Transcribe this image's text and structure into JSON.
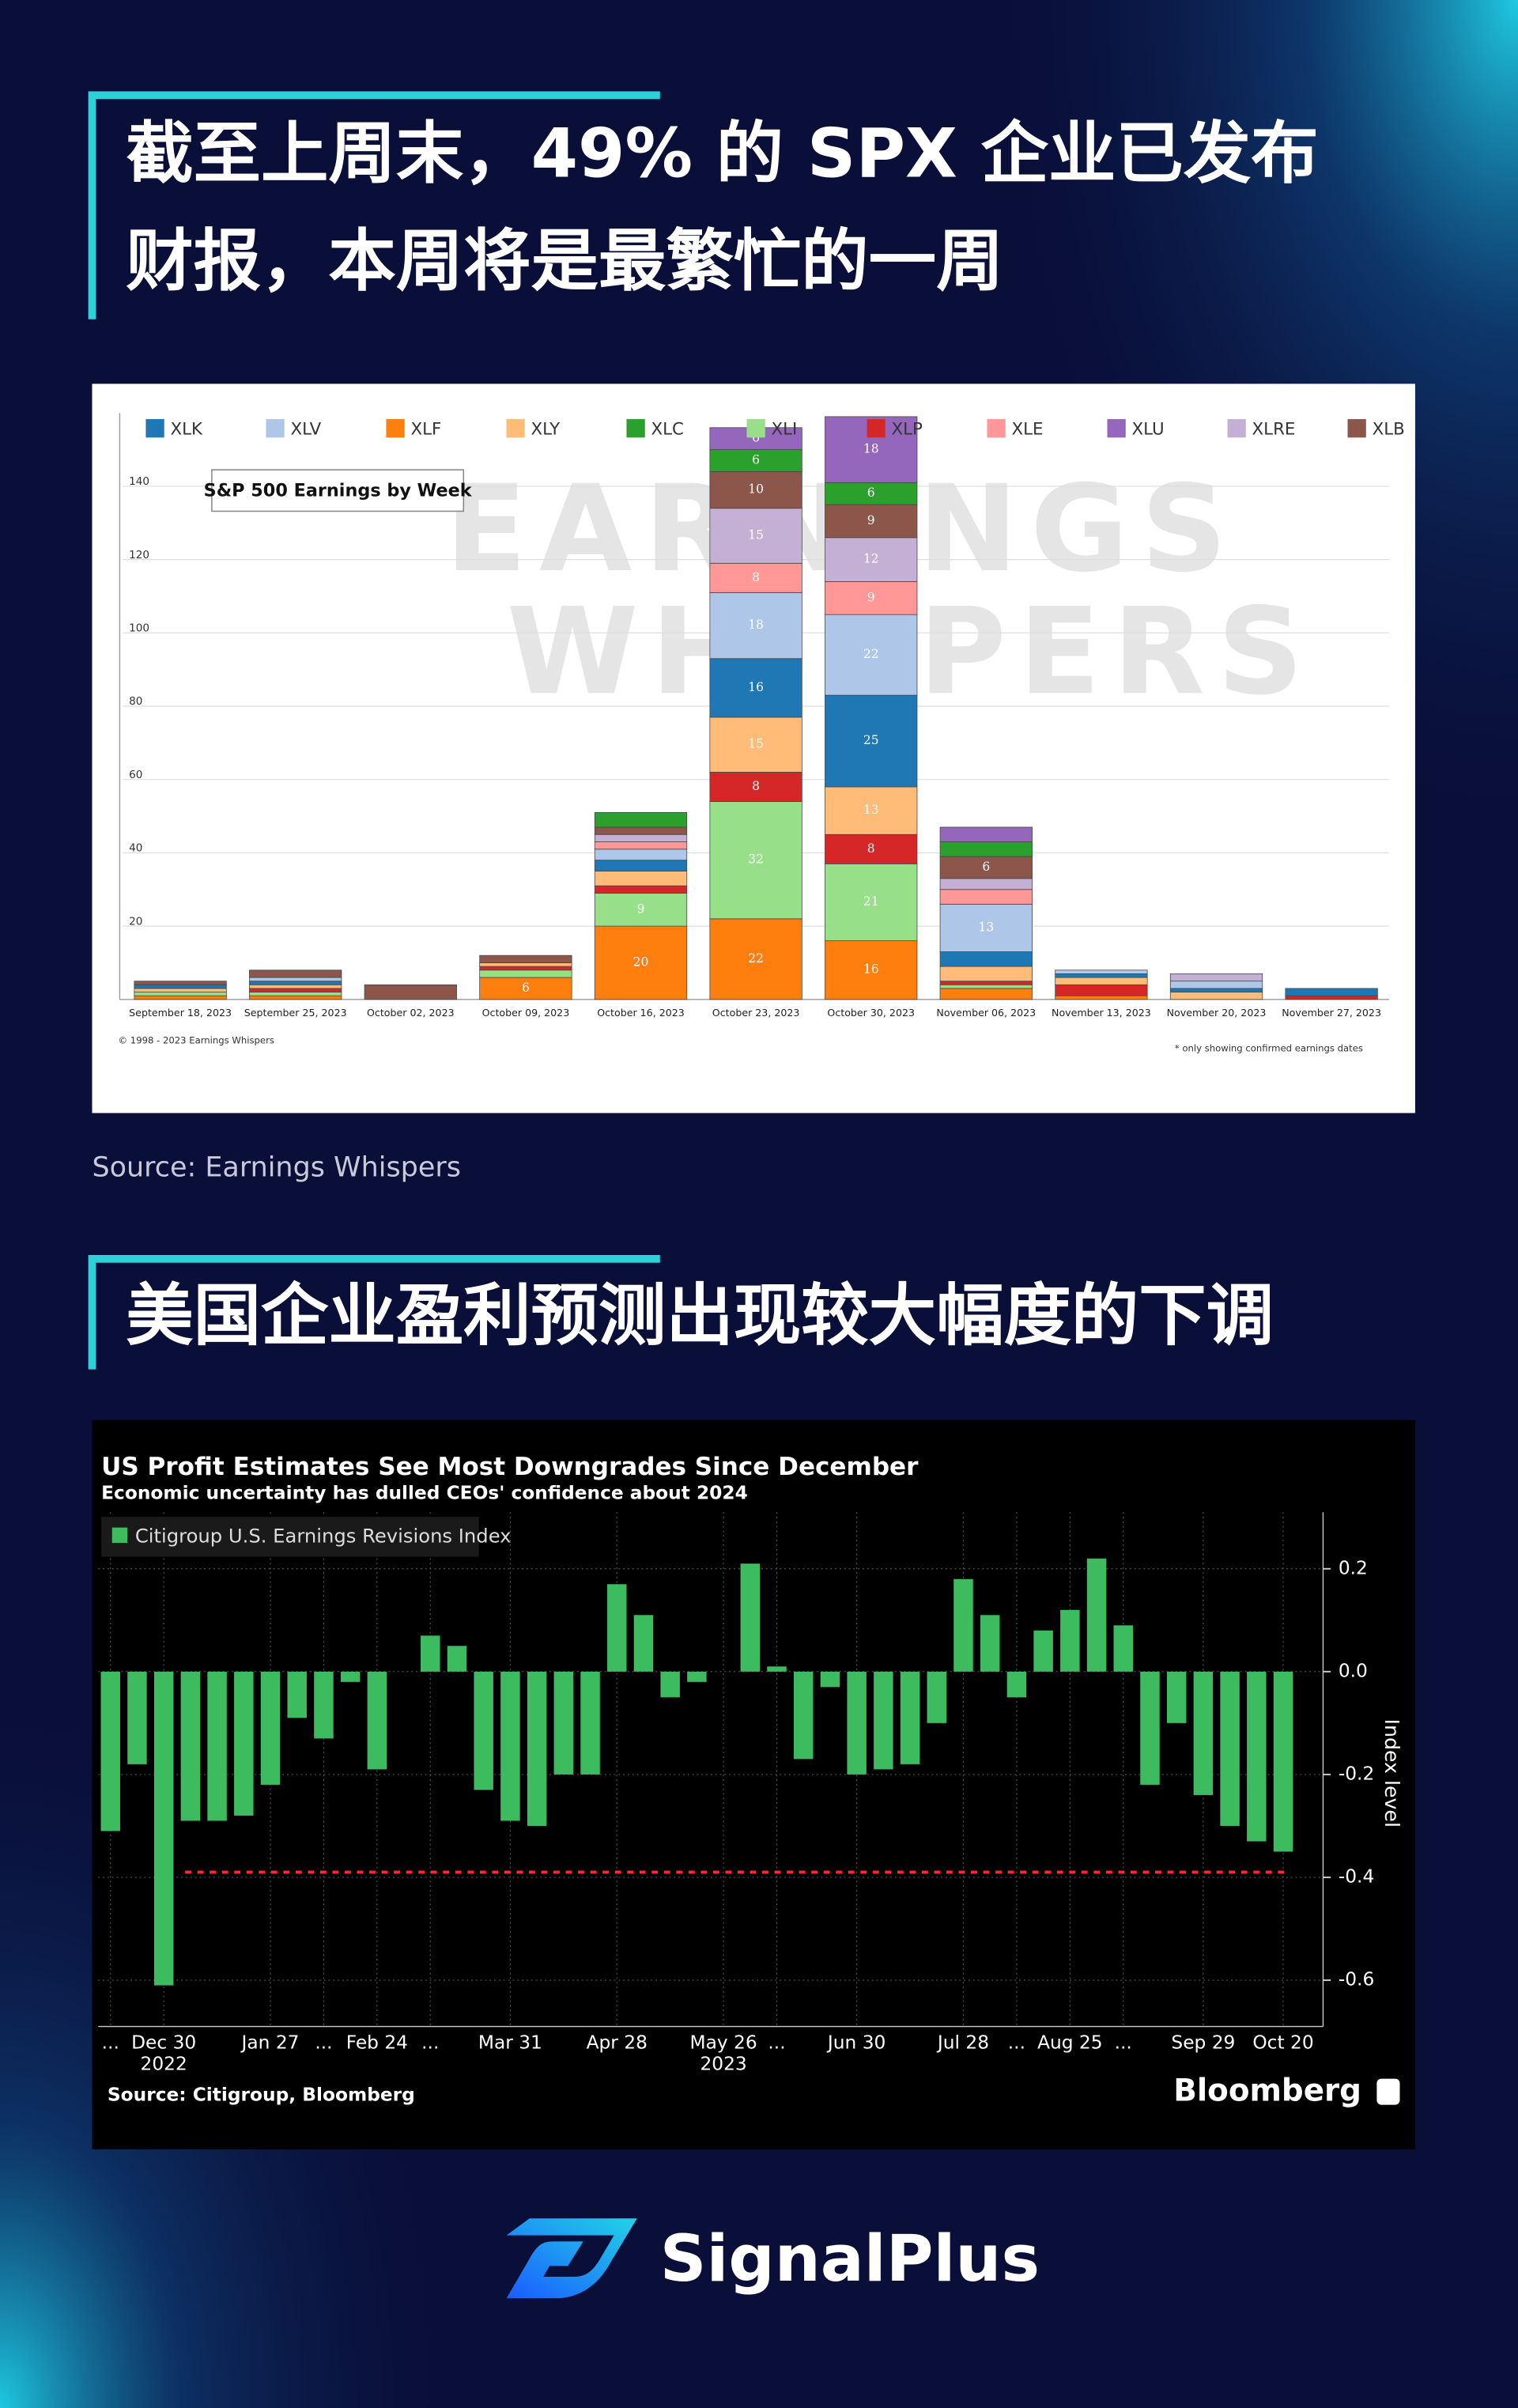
{
  "heading_1": [
    "截至上周末，49% 的 SPX 企业已发布",
    "财报，本周将是最繁忙的一周"
  ],
  "heading_2": "美国企业盈利预测出现较大幅度的下调",
  "logo": "SignalPlus",
  "chart_data": [
    {
      "type": "bar",
      "stacked": true,
      "title": "S&P 500 Earnings by Week",
      "categories": [
        "September 18, 2023",
        "September 25, 2023",
        "October 02, 2023",
        "October 09, 2023",
        "October 16, 2023",
        "October 23, 2023",
        "October 30, 2023",
        "November 06, 2023",
        "November 13, 2023",
        "November 20, 2023",
        "November 27, 2023"
      ],
      "series": [
        {
          "name": "XLK",
          "color": "#1f77b4",
          "values": [
            1,
            1,
            0,
            0,
            3,
            16,
            25,
            4,
            1,
            1,
            2
          ]
        },
        {
          "name": "XLV",
          "color": "#aec7e8",
          "values": [
            0,
            1,
            0,
            0,
            3,
            18,
            22,
            13,
            1,
            2,
            0
          ]
        },
        {
          "name": "XLF",
          "color": "#ff7f0e",
          "values": [
            1,
            1,
            0,
            6,
            20,
            22,
            16,
            3,
            1,
            0,
            0
          ]
        },
        {
          "name": "XLY",
          "color": "#ffbb78",
          "values": [
            1,
            1,
            0,
            1,
            4,
            15,
            13,
            4,
            2,
            2,
            0
          ]
        },
        {
          "name": "XLC",
          "color": "#2ca02c",
          "values": [
            0,
            0,
            0,
            0,
            4,
            6,
            6,
            4,
            0,
            0,
            0
          ]
        },
        {
          "name": "XLI",
          "color": "#98df8a",
          "values": [
            1,
            1,
            0,
            2,
            9,
            32,
            21,
            1,
            0,
            0,
            0
          ]
        },
        {
          "name": "XLP",
          "color": "#d62728",
          "values": [
            0,
            1,
            0,
            1,
            2,
            8,
            8,
            1,
            3,
            0,
            1
          ]
        },
        {
          "name": "XLE",
          "color": "#ff9896",
          "values": [
            0,
            0,
            0,
            0,
            2,
            8,
            9,
            4,
            0,
            0,
            0
          ]
        },
        {
          "name": "XLU",
          "color": "#9467bd",
          "values": [
            0,
            0,
            0,
            0,
            0,
            6,
            18,
            4,
            0,
            0,
            0
          ]
        },
        {
          "name": "XLRE",
          "color": "#c5b0d5",
          "values": [
            0,
            0,
            0,
            0,
            2,
            15,
            12,
            3,
            0,
            2,
            0
          ]
        },
        {
          "name": "XLB",
          "color": "#8c564b",
          "values": [
            1,
            2,
            4,
            2,
            2,
            10,
            9,
            6,
            0,
            0,
            0
          ]
        }
      ],
      "stack_order": [
        2,
        5,
        6,
        3,
        0,
        1,
        7,
        9,
        10,
        4,
        8
      ],
      "ylim": [
        0,
        160
      ],
      "yticks": [
        20,
        40,
        60,
        80,
        100,
        120,
        140
      ],
      "grid": true,
      "watermark": [
        "EARNINGS",
        "WHISPERS"
      ],
      "copyright": "© 1998 - 2023 Earnings Whispers",
      "note": "* only showing confirmed earnings dates",
      "source": "Source: Earnings Whispers"
    },
    {
      "type": "bar",
      "title": "US Profit Estimates See Most Downgrades Since December",
      "subtitle": "Economic uncertainty has dulled CEOs' confidence about 2024",
      "categories": [
        "...",
        null,
        "Dec 30",
        null,
        null,
        null,
        "Jan 27",
        null,
        "...",
        null,
        "Feb 24",
        null,
        "...",
        null,
        null,
        "Mar 31",
        null,
        null,
        null,
        "Apr 28",
        null,
        null,
        null,
        "May 26",
        null,
        "...",
        null,
        null,
        "Jun 30",
        null,
        null,
        null,
        "Jul 28",
        null,
        "...",
        null,
        "Aug 25",
        null,
        "...",
        null,
        null,
        "Sep 29",
        null,
        null,
        "Oct 20"
      ],
      "years": [
        null,
        null,
        "2022",
        null,
        null,
        null,
        null,
        null,
        null,
        null,
        null,
        null,
        null,
        null,
        null,
        null,
        null,
        null,
        null,
        null,
        null,
        null,
        null,
        "2023",
        null,
        null,
        null,
        null,
        null,
        null,
        null,
        null,
        null,
        null,
        null,
        null,
        null,
        null,
        null,
        null,
        null,
        null,
        null,
        null,
        null
      ],
      "series": [
        {
          "name": "Citigroup U.S. Earnings Revisions Index",
          "color": "#3dbb5f",
          "values": [
            -0.31,
            -0.18,
            -0.61,
            -0.29,
            -0.29,
            -0.28,
            -0.22,
            -0.09,
            -0.13,
            -0.02,
            -0.19,
            0,
            0.07,
            0.05,
            -0.23,
            -0.29,
            -0.3,
            -0.2,
            -0.2,
            0.17,
            0.11,
            -0.05,
            -0.02,
            0,
            0.21,
            0.01,
            -0.17,
            -0.03,
            -0.2,
            -0.19,
            -0.18,
            -0.1,
            0.18,
            0.11,
            -0.05,
            0.08,
            0.12,
            0.22,
            0.09,
            -0.22,
            -0.1,
            -0.24,
            -0.3,
            -0.33,
            -0.35
          ]
        }
      ],
      "ylim": [
        -0.69,
        0.31
      ],
      "yticks": [
        0.2,
        {
          "value": 0,
          "label": "0.0"
        },
        -0.2,
        -0.4,
        -0.6
      ],
      "grid": true,
      "ylabel": "Index level",
      "reference_line": {
        "value": -0.39,
        "color": "#ff2a2a"
      },
      "source": "Source: Citigroup, Bloomberg",
      "brand": "Bloomberg"
    }
  ]
}
